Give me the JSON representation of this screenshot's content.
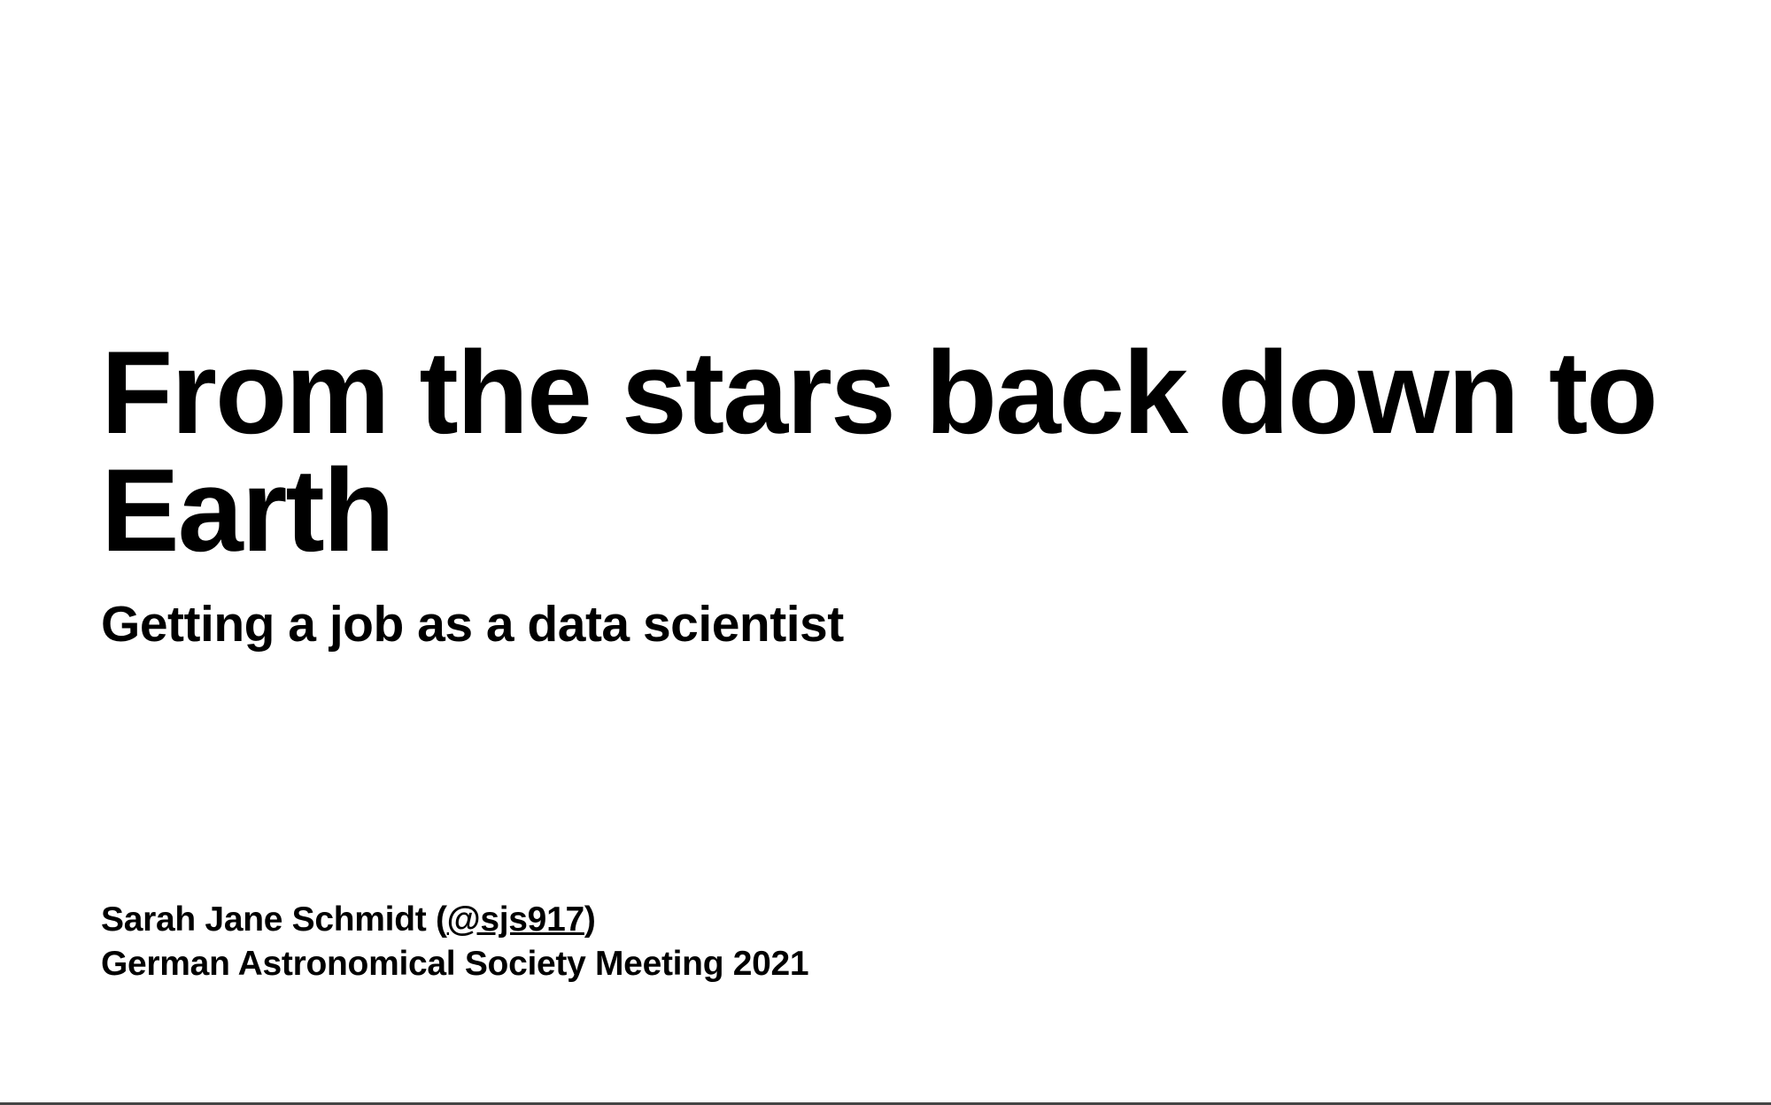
{
  "slide": {
    "title_line1": "From the stars back down to",
    "title_line2": "Earth",
    "subtitle": "Getting a job as a data scientist",
    "author_name": "Sarah Jane Schmidt (",
    "author_handle": "@sjs917",
    "author_suffix": ")",
    "event": "German Astronomical Society Meeting 2021"
  }
}
